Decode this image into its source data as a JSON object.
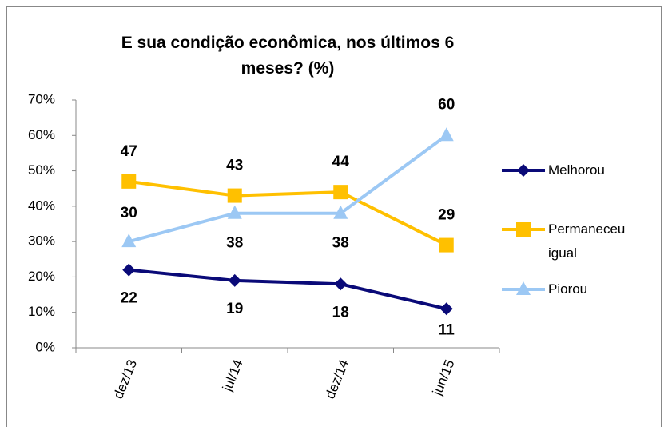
{
  "chart_data": {
    "type": "line",
    "title": "E sua condição econômica, nos últimos 6 meses? (%)",
    "categories": [
      "dez/13",
      "jul/14",
      "dez/14",
      "jun/15"
    ],
    "series": [
      {
        "name": "Melhorou",
        "color": "#0a0a78",
        "marker": "diamond",
        "values": [
          22,
          19,
          18,
          11
        ]
      },
      {
        "name": "Permaneceu igual",
        "color": "#ffc000",
        "marker": "square",
        "values": [
          47,
          43,
          44,
          29
        ]
      },
      {
        "name": "Piorou",
        "color": "#9cc8f4",
        "marker": "triangle",
        "values": [
          30,
          38,
          38,
          60
        ]
      }
    ],
    "ylim": [
      0,
      70
    ],
    "yticks": [
      {
        "value": 0,
        "label": "0%"
      },
      {
        "value": 10,
        "label": "10%"
      },
      {
        "value": 20,
        "label": "20%"
      },
      {
        "value": 30,
        "label": "30%"
      },
      {
        "value": 40,
        "label": "40%"
      },
      {
        "value": 50,
        "label": "50%"
      },
      {
        "value": 60,
        "label": "60%"
      },
      {
        "value": 70,
        "label": "70%"
      }
    ],
    "legend": "right"
  }
}
